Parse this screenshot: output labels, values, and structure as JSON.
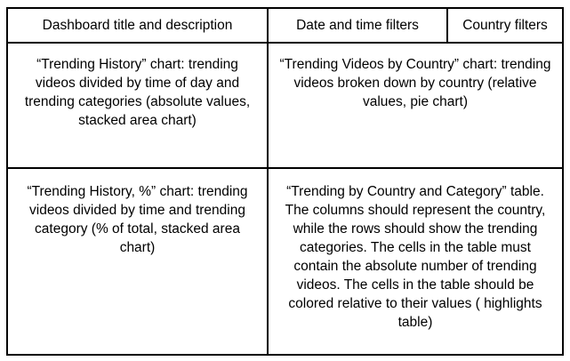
{
  "header": {
    "title_cell": "Dashboard title and description",
    "date_time_cell": "Date and time filters",
    "country_cell": "Country filters"
  },
  "charts": {
    "trending_history": "“Trending History” chart: trending videos divided by time of day and trending categories (absolute values, stacked area chart)",
    "trending_by_country": "“Trending Videos by Country” chart: trending videos broken down by country (relative values, pie chart)",
    "trending_history_pct": "“Trending History, %” chart: trending videos divided by time and trending category (% of total, stacked area chart)",
    "trending_by_country_category": "“Trending by Country and Category” table. The columns should represent the country, while the rows should show the trending categories. The cells in the table must contain the absolute number of trending videos. The cells in the table should be colored relative to their values ( highlights table)"
  }
}
